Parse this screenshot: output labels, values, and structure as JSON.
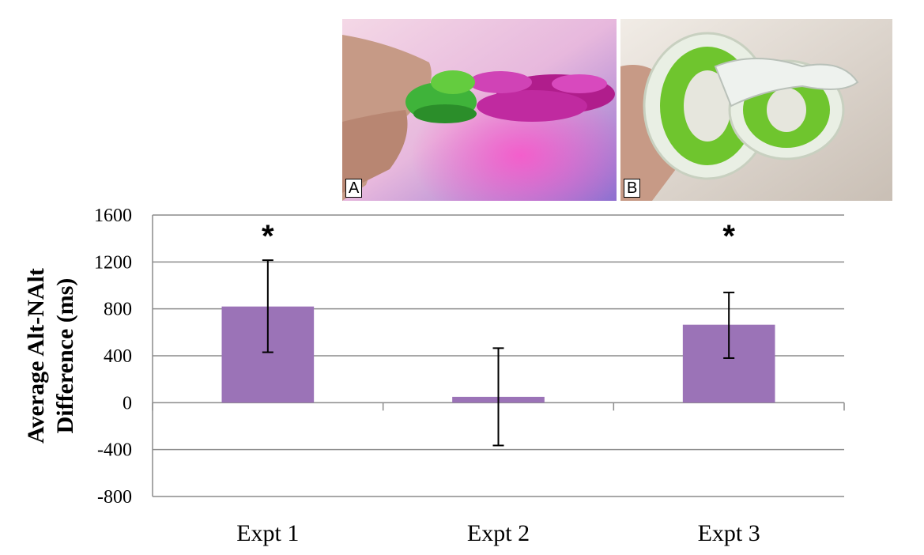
{
  "photos": [
    {
      "label": "A"
    },
    {
      "label": "B"
    }
  ],
  "colors": {
    "bar": "#9b73b7",
    "grid": "#8c8c8c",
    "error_bar": "#000000"
  },
  "chart_data": {
    "type": "bar",
    "categories": [
      "Expt 1",
      "Expt 2",
      "Expt 3"
    ],
    "values": [
      820,
      50,
      665
    ],
    "error_upper": [
      1215,
      465,
      940
    ],
    "error_lower": [
      430,
      -365,
      380
    ],
    "significance": [
      "*",
      "",
      "*"
    ],
    "title": "",
    "xlabel": "",
    "ylabel": "Average Alt-NAlt Difference (ms)",
    "ylabel_lines": [
      "Average Alt-NAlt",
      "Difference (ms)"
    ],
    "ylim": [
      -800,
      1600
    ],
    "yticks": [
      -800,
      -400,
      0,
      400,
      800,
      1200,
      1600
    ],
    "grid": true,
    "legend": "none"
  }
}
